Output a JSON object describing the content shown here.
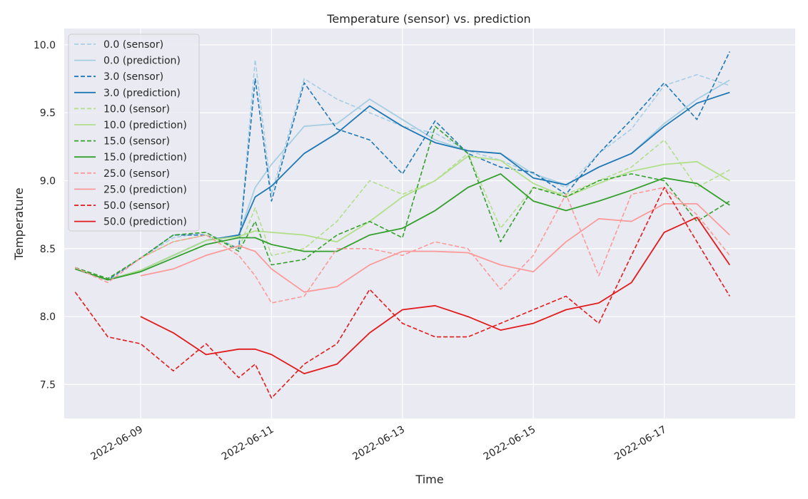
{
  "chart_data": {
    "type": "line",
    "title": "Temperature (sensor) vs. prediction",
    "xlabel": "Time",
    "ylabel": "Temperature",
    "x_range": [
      "2022-06-07T20:00",
      "2022-06-19T00:00"
    ],
    "ylim": [
      7.25,
      10.12
    ],
    "x_ticks": [
      "2022-06-09",
      "2022-06-11",
      "2022-06-13",
      "2022-06-15",
      "2022-06-17"
    ],
    "y_ticks": [
      7.5,
      8.0,
      8.5,
      9.0,
      9.5,
      10.0
    ],
    "y_tick_labels": [
      "7.5",
      "8.0",
      "8.5",
      "9.0",
      "9.5",
      "10.0"
    ],
    "grid": true,
    "legend_position": "top-left",
    "background_color": "#eaeaf2",
    "series": [
      {
        "name": "0.0 (sensor)",
        "color": "#a6cee3",
        "dash": "dashed",
        "x": [
          "2022-06-08T00:00",
          "2022-06-08T12:00",
          "2022-06-09T00:00",
          "2022-06-09T12:00",
          "2022-06-10T00:00",
          "2022-06-10T12:00",
          "2022-06-10T18:00",
          "2022-06-11T00:00",
          "2022-06-11T12:00",
          "2022-06-12T00:00",
          "2022-06-12T12:00",
          "2022-06-13T00:00",
          "2022-06-13T12:00",
          "2022-06-14T00:00",
          "2022-06-14T12:00",
          "2022-06-15T00:00",
          "2022-06-15T12:00",
          "2022-06-16T00:00",
          "2022-06-16T12:00",
          "2022-06-17T00:00",
          "2022-06-17T12:00",
          "2022-06-18T00:00"
        ],
        "y": [
          8.36,
          8.28,
          8.43,
          8.58,
          8.62,
          8.5,
          9.89,
          8.9,
          9.75,
          9.6,
          9.5,
          9.4,
          9.35,
          9.22,
          9.15,
          9.05,
          8.95,
          9.2,
          9.38,
          9.7,
          9.78,
          9.7
        ]
      },
      {
        "name": "0.0 (prediction)",
        "color": "#a6cee3",
        "dash": "solid",
        "x": [
          "2022-06-08T00:00",
          "2022-06-08T12:00",
          "2022-06-09T00:00",
          "2022-06-09T12:00",
          "2022-06-10T00:00",
          "2022-06-10T12:00",
          "2022-06-10T18:00",
          "2022-06-11T00:00",
          "2022-06-11T12:00",
          "2022-06-12T00:00",
          "2022-06-12T12:00",
          "2022-06-13T00:00",
          "2022-06-13T12:00",
          "2022-06-14T00:00",
          "2022-06-14T12:00",
          "2022-06-15T00:00",
          "2022-06-15T12:00",
          "2022-06-16T00:00",
          "2022-06-16T12:00",
          "2022-06-17T00:00",
          "2022-06-17T12:00",
          "2022-06-18T00:00"
        ],
        "y": [
          8.35,
          8.27,
          8.34,
          8.45,
          8.56,
          8.6,
          8.95,
          9.12,
          9.4,
          9.42,
          9.6,
          9.45,
          9.3,
          9.22,
          9.2,
          9.05,
          8.97,
          9.1,
          9.2,
          9.42,
          9.6,
          9.74
        ]
      },
      {
        "name": "3.0 (sensor)",
        "color": "#1f78b4",
        "dash": "dashed",
        "x": [
          "2022-06-08T00:00",
          "2022-06-08T12:00",
          "2022-06-09T00:00",
          "2022-06-09T12:00",
          "2022-06-10T00:00",
          "2022-06-10T12:00",
          "2022-06-10T18:00",
          "2022-06-11T00:00",
          "2022-06-11T12:00",
          "2022-06-12T00:00",
          "2022-06-12T12:00",
          "2022-06-13T00:00",
          "2022-06-13T12:00",
          "2022-06-14T00:00",
          "2022-06-14T12:00",
          "2022-06-15T00:00",
          "2022-06-15T12:00",
          "2022-06-16T00:00",
          "2022-06-16T12:00",
          "2022-06-17T00:00",
          "2022-06-17T12:00",
          "2022-06-18T00:00"
        ],
        "y": [
          8.36,
          8.27,
          8.43,
          8.6,
          8.6,
          8.5,
          9.75,
          8.85,
          9.72,
          9.38,
          9.3,
          9.05,
          9.44,
          9.2,
          9.1,
          9.06,
          8.9,
          9.2,
          9.45,
          9.72,
          9.45,
          9.95
        ]
      },
      {
        "name": "3.0 (prediction)",
        "color": "#1f78b4",
        "dash": "solid",
        "x": [
          "2022-06-08T00:00",
          "2022-06-08T12:00",
          "2022-06-09T00:00",
          "2022-06-09T12:00",
          "2022-06-10T00:00",
          "2022-06-10T12:00",
          "2022-06-10T18:00",
          "2022-06-11T00:00",
          "2022-06-11T12:00",
          "2022-06-12T00:00",
          "2022-06-12T12:00",
          "2022-06-13T00:00",
          "2022-06-13T12:00",
          "2022-06-14T00:00",
          "2022-06-14T12:00",
          "2022-06-15T00:00",
          "2022-06-15T12:00",
          "2022-06-16T00:00",
          "2022-06-16T12:00",
          "2022-06-17T00:00",
          "2022-06-17T12:00",
          "2022-06-18T00:00"
        ],
        "y": [
          8.35,
          8.27,
          8.34,
          8.45,
          8.56,
          8.6,
          8.88,
          8.96,
          9.2,
          9.35,
          9.55,
          9.4,
          9.28,
          9.22,
          9.2,
          9.02,
          8.97,
          9.1,
          9.2,
          9.4,
          9.57,
          9.65
        ]
      },
      {
        "name": "10.0 (sensor)",
        "color": "#b2df8a",
        "dash": "dashed",
        "x": [
          "2022-06-08T00:00",
          "2022-06-08T12:00",
          "2022-06-09T00:00",
          "2022-06-09T12:00",
          "2022-06-10T00:00",
          "2022-06-10T12:00",
          "2022-06-10T18:00",
          "2022-06-11T00:00",
          "2022-06-11T12:00",
          "2022-06-12T00:00",
          "2022-06-12T12:00",
          "2022-06-13T00:00",
          "2022-06-13T12:00",
          "2022-06-14T00:00",
          "2022-06-14T12:00",
          "2022-06-15T00:00",
          "2022-06-15T12:00",
          "2022-06-16T00:00",
          "2022-06-16T12:00",
          "2022-06-17T00:00",
          "2022-06-17T12:00",
          "2022-06-18T00:00"
        ],
        "y": [
          8.36,
          8.28,
          8.43,
          8.55,
          8.6,
          8.5,
          8.8,
          8.45,
          8.5,
          8.7,
          9.0,
          8.9,
          9.0,
          9.2,
          8.65,
          8.95,
          8.9,
          9.0,
          9.1,
          9.3,
          8.95,
          9.08
        ]
      },
      {
        "name": "10.0 (prediction)",
        "color": "#b2df8a",
        "dash": "solid",
        "x": [
          "2022-06-08T00:00",
          "2022-06-08T12:00",
          "2022-06-09T00:00",
          "2022-06-09T12:00",
          "2022-06-10T00:00",
          "2022-06-10T12:00",
          "2022-06-10T18:00",
          "2022-06-11T00:00",
          "2022-06-11T12:00",
          "2022-06-12T00:00",
          "2022-06-12T12:00",
          "2022-06-13T00:00",
          "2022-06-13T12:00",
          "2022-06-14T00:00",
          "2022-06-14T12:00",
          "2022-06-15T00:00",
          "2022-06-15T12:00",
          "2022-06-16T00:00",
          "2022-06-16T12:00",
          "2022-06-17T00:00",
          "2022-06-17T12:00",
          "2022-06-18T00:00"
        ],
        "y": [
          8.35,
          8.27,
          8.34,
          8.45,
          8.56,
          8.59,
          8.63,
          8.62,
          8.6,
          8.55,
          8.7,
          8.88,
          9.0,
          9.18,
          9.15,
          8.98,
          8.88,
          8.98,
          9.07,
          9.12,
          9.14,
          9.0
        ]
      },
      {
        "name": "15.0 (sensor)",
        "color": "#33a02c",
        "dash": "dashed",
        "x": [
          "2022-06-08T00:00",
          "2022-06-08T12:00",
          "2022-06-09T00:00",
          "2022-06-09T12:00",
          "2022-06-10T00:00",
          "2022-06-10T12:00",
          "2022-06-10T18:00",
          "2022-06-11T00:00",
          "2022-06-11T12:00",
          "2022-06-12T00:00",
          "2022-06-12T12:00",
          "2022-06-13T00:00",
          "2022-06-13T12:00",
          "2022-06-14T00:00",
          "2022-06-14T12:00",
          "2022-06-15T00:00",
          "2022-06-15T12:00",
          "2022-06-16T00:00",
          "2022-06-16T12:00",
          "2022-06-17T00:00",
          "2022-06-17T12:00",
          "2022-06-18T00:00"
        ],
        "y": [
          8.36,
          8.28,
          8.43,
          8.6,
          8.62,
          8.48,
          8.7,
          8.38,
          8.42,
          8.6,
          8.7,
          8.58,
          9.4,
          9.2,
          8.55,
          8.95,
          8.88,
          9.0,
          9.05,
          9.0,
          8.7,
          8.85
        ]
      },
      {
        "name": "15.0 (prediction)",
        "color": "#33a02c",
        "dash": "solid",
        "x": [
          "2022-06-08T00:00",
          "2022-06-08T12:00",
          "2022-06-09T00:00",
          "2022-06-09T12:00",
          "2022-06-10T00:00",
          "2022-06-10T12:00",
          "2022-06-10T18:00",
          "2022-06-11T00:00",
          "2022-06-11T12:00",
          "2022-06-12T00:00",
          "2022-06-12T12:00",
          "2022-06-13T00:00",
          "2022-06-13T12:00",
          "2022-06-14T00:00",
          "2022-06-14T12:00",
          "2022-06-15T00:00",
          "2022-06-15T12:00",
          "2022-06-16T00:00",
          "2022-06-16T12:00",
          "2022-06-17T00:00",
          "2022-06-17T12:00",
          "2022-06-18T00:00"
        ],
        "y": [
          8.35,
          8.27,
          8.33,
          8.43,
          8.53,
          8.58,
          8.58,
          8.53,
          8.48,
          8.48,
          8.6,
          8.65,
          8.78,
          8.95,
          9.05,
          8.85,
          8.78,
          8.85,
          8.93,
          9.02,
          8.98,
          8.82
        ]
      },
      {
        "name": "25.0 (sensor)",
        "color": "#fb9a99",
        "dash": "dashed",
        "x": [
          "2022-06-08T00:00",
          "2022-06-08T12:00",
          "2022-06-09T00:00",
          "2022-06-09T12:00",
          "2022-06-10T00:00",
          "2022-06-10T12:00",
          "2022-06-10T18:00",
          "2022-06-11T00:00",
          "2022-06-11T12:00",
          "2022-06-12T00:00",
          "2022-06-12T12:00",
          "2022-06-13T00:00",
          "2022-06-13T12:00",
          "2022-06-14T00:00",
          "2022-06-14T12:00",
          "2022-06-15T00:00",
          "2022-06-15T12:00",
          "2022-06-16T00:00",
          "2022-06-16T12:00",
          "2022-06-17T00:00",
          "2022-06-17T12:00",
          "2022-06-18T00:00"
        ],
        "y": [
          8.36,
          8.25,
          8.43,
          8.55,
          8.6,
          8.45,
          8.3,
          8.1,
          8.15,
          8.5,
          8.5,
          8.45,
          8.55,
          8.5,
          8.2,
          8.45,
          8.9,
          8.3,
          8.9,
          8.95,
          8.75,
          8.45
        ]
      },
      {
        "name": "25.0 (prediction)",
        "color": "#fb9a99",
        "dash": "solid",
        "x": [
          "2022-06-09T00:00",
          "2022-06-09T12:00",
          "2022-06-10T00:00",
          "2022-06-10T12:00",
          "2022-06-10T18:00",
          "2022-06-11T00:00",
          "2022-06-11T12:00",
          "2022-06-12T00:00",
          "2022-06-12T12:00",
          "2022-06-13T00:00",
          "2022-06-13T12:00",
          "2022-06-14T00:00",
          "2022-06-14T12:00",
          "2022-06-15T00:00",
          "2022-06-15T12:00",
          "2022-06-16T00:00",
          "2022-06-16T12:00",
          "2022-06-17T00:00",
          "2022-06-17T12:00",
          "2022-06-18T00:00"
        ],
        "y": [
          8.3,
          8.35,
          8.45,
          8.52,
          8.48,
          8.35,
          8.18,
          8.22,
          8.38,
          8.48,
          8.48,
          8.47,
          8.38,
          8.33,
          8.55,
          8.72,
          8.7,
          8.83,
          8.83,
          8.6
        ]
      },
      {
        "name": "50.0 (sensor)",
        "color": "#e31a1c",
        "dash": "dashed",
        "x": [
          "2022-06-08T00:00",
          "2022-06-08T12:00",
          "2022-06-09T00:00",
          "2022-06-09T12:00",
          "2022-06-10T00:00",
          "2022-06-10T12:00",
          "2022-06-10T18:00",
          "2022-06-11T00:00",
          "2022-06-11T12:00",
          "2022-06-12T00:00",
          "2022-06-12T12:00",
          "2022-06-13T00:00",
          "2022-06-13T12:00",
          "2022-06-14T00:00",
          "2022-06-14T12:00",
          "2022-06-15T00:00",
          "2022-06-15T12:00",
          "2022-06-16T00:00",
          "2022-06-16T12:00",
          "2022-06-17T00:00",
          "2022-06-17T12:00",
          "2022-06-18T00:00"
        ],
        "y": [
          8.18,
          7.85,
          7.8,
          7.6,
          7.8,
          7.55,
          7.65,
          7.4,
          7.65,
          7.8,
          8.2,
          7.95,
          7.85,
          7.85,
          7.95,
          8.05,
          8.15,
          7.95,
          8.45,
          8.95,
          8.55,
          8.15
        ]
      },
      {
        "name": "50.0 (prediction)",
        "color": "#e31a1c",
        "dash": "solid",
        "x": [
          "2022-06-09T00:00",
          "2022-06-09T12:00",
          "2022-06-10T00:00",
          "2022-06-10T12:00",
          "2022-06-10T18:00",
          "2022-06-11T00:00",
          "2022-06-11T12:00",
          "2022-06-12T00:00",
          "2022-06-12T12:00",
          "2022-06-13T00:00",
          "2022-06-13T12:00",
          "2022-06-14T00:00",
          "2022-06-14T12:00",
          "2022-06-15T00:00",
          "2022-06-15T12:00",
          "2022-06-16T00:00",
          "2022-06-16T12:00",
          "2022-06-17T00:00",
          "2022-06-17T12:00",
          "2022-06-18T00:00"
        ],
        "y": [
          8.0,
          7.88,
          7.72,
          7.76,
          7.76,
          7.72,
          7.58,
          7.65,
          7.88,
          8.05,
          8.08,
          8.0,
          7.9,
          7.95,
          8.05,
          8.1,
          8.25,
          8.62,
          8.73,
          8.38
        ]
      }
    ]
  }
}
